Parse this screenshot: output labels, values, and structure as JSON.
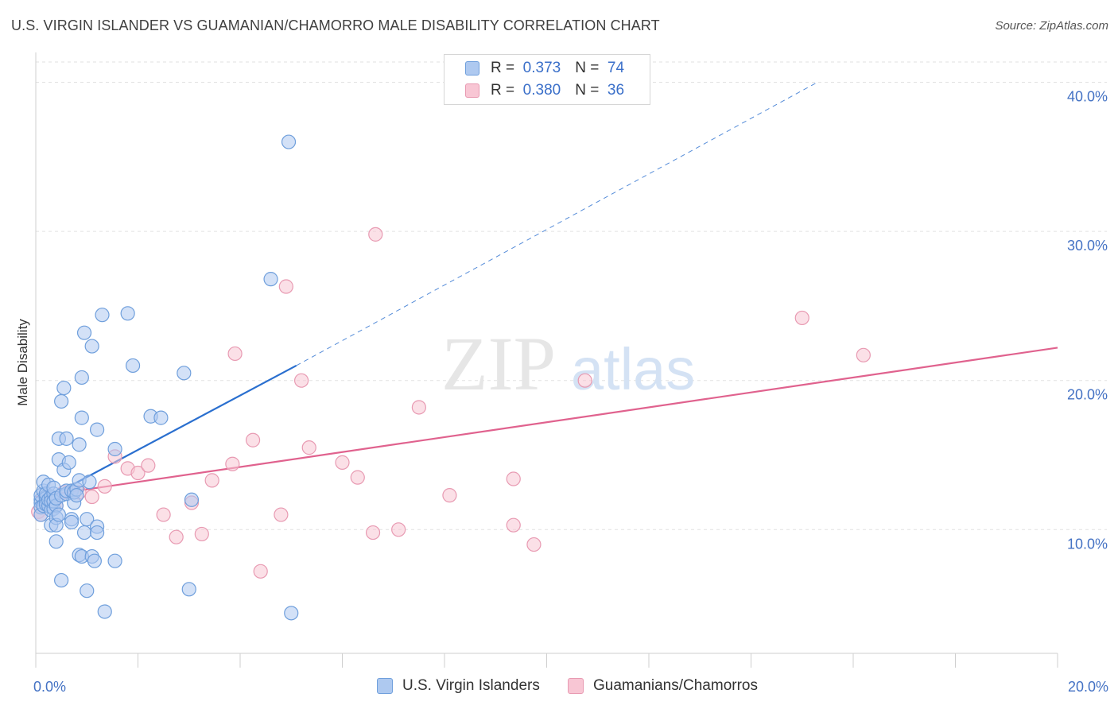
{
  "title": "U.S. VIRGIN ISLANDER VS GUAMANIAN/CHAMORRO MALE DISABILITY CORRELATION CHART",
  "source": "Source: ZipAtlas.com",
  "watermark": {
    "zip": "ZIP",
    "atlas": "atlas"
  },
  "legend": {
    "r_label": "R =",
    "n_label": "N =",
    "series": [
      {
        "r": "0.373",
        "n": "74",
        "color": "#aec9f0",
        "border": "#6f9fdc"
      },
      {
        "r": "0.380",
        "n": "36",
        "color": "#f8c6d4",
        "border": "#e89ab2"
      }
    ]
  },
  "bottom_legend": [
    "U.S. Virgin Islanders",
    "Guamanians/Chamorros"
  ],
  "chart_data": {
    "type": "scatter",
    "xlabel": "",
    "ylabel": "Male Disability",
    "xlim": [
      0,
      20
    ],
    "ylim": [
      1.7,
      42
    ],
    "x_tick_labels": [
      {
        "value": 0,
        "label": "0.0%"
      },
      {
        "value": 20,
        "label": "20.0%"
      }
    ],
    "y_ticks": [
      {
        "value": 10,
        "label": "10.0%"
      },
      {
        "value": 20,
        "label": "20.0%"
      },
      {
        "value": 30,
        "label": "30.0%"
      },
      {
        "value": 40,
        "label": "40.0%"
      }
    ],
    "grid": true,
    "series": [
      {
        "name": "U.S. Virgin Islanders",
        "color": "#6f9fdc",
        "fill": "#aec9f0",
        "trend_color": "#2a6fcf",
        "trend": {
          "x0": 0,
          "y0": 11.7,
          "x1": 5.1,
          "y1": 21.0,
          "dash_x1": 15.3,
          "dash_y1": 40.0
        },
        "points": [
          [
            0.1,
            12.0
          ],
          [
            0.1,
            11.8
          ],
          [
            0.1,
            12.3
          ],
          [
            0.1,
            11.5
          ],
          [
            0.1,
            11.0
          ],
          [
            0.15,
            12.6
          ],
          [
            0.15,
            13.2
          ],
          [
            0.15,
            11.6
          ],
          [
            0.2,
            12.2
          ],
          [
            0.2,
            11.9
          ],
          [
            0.2,
            12.1
          ],
          [
            0.2,
            11.7
          ],
          [
            0.2,
            12.4
          ],
          [
            0.25,
            11.6
          ],
          [
            0.25,
            12.0
          ],
          [
            0.25,
            13.0
          ],
          [
            0.3,
            11.3
          ],
          [
            0.3,
            12.2
          ],
          [
            0.3,
            11.9
          ],
          [
            0.3,
            10.3
          ],
          [
            0.35,
            12.4
          ],
          [
            0.35,
            11.4
          ],
          [
            0.35,
            12.8
          ],
          [
            0.35,
            11.9
          ],
          [
            0.4,
            11.6
          ],
          [
            0.4,
            12.1
          ],
          [
            0.4,
            10.8
          ],
          [
            0.4,
            10.3
          ],
          [
            0.4,
            9.2
          ],
          [
            0.45,
            14.7
          ],
          [
            0.45,
            16.1
          ],
          [
            0.45,
            11.0
          ],
          [
            0.5,
            18.6
          ],
          [
            0.5,
            12.3
          ],
          [
            0.5,
            6.6
          ],
          [
            0.55,
            19.5
          ],
          [
            0.55,
            14.0
          ],
          [
            0.6,
            12.4
          ],
          [
            0.6,
            12.6
          ],
          [
            0.6,
            16.1
          ],
          [
            0.65,
            14.5
          ],
          [
            0.7,
            12.6
          ],
          [
            0.7,
            10.7
          ],
          [
            0.7,
            10.5
          ],
          [
            0.75,
            11.8
          ],
          [
            0.75,
            12.5
          ],
          [
            0.8,
            12.7
          ],
          [
            0.8,
            12.3
          ],
          [
            0.85,
            15.7
          ],
          [
            0.85,
            13.3
          ],
          [
            0.85,
            8.3
          ],
          [
            0.9,
            8.2
          ],
          [
            0.9,
            17.5
          ],
          [
            0.9,
            20.2
          ],
          [
            0.95,
            23.2
          ],
          [
            0.95,
            9.8
          ],
          [
            1.0,
            5.9
          ],
          [
            1.0,
            10.7
          ],
          [
            1.05,
            13.2
          ],
          [
            1.1,
            22.3
          ],
          [
            1.1,
            8.2
          ],
          [
            1.15,
            7.9
          ],
          [
            1.2,
            16.7
          ],
          [
            1.2,
            10.2
          ],
          [
            1.2,
            9.8
          ],
          [
            1.3,
            24.4
          ],
          [
            1.35,
            4.5
          ],
          [
            1.55,
            15.4
          ],
          [
            1.55,
            7.9
          ],
          [
            1.8,
            24.5
          ],
          [
            1.9,
            21.0
          ],
          [
            2.25,
            17.6
          ],
          [
            2.45,
            17.5
          ],
          [
            2.9,
            20.5
          ],
          [
            3.0,
            6.0
          ],
          [
            3.05,
            12.0
          ],
          [
            4.6,
            26.8
          ],
          [
            4.95,
            36.0
          ],
          [
            5.0,
            4.4
          ]
        ]
      },
      {
        "name": "Guamanians/Chamorros",
        "color": "#e89ab2",
        "fill": "#f8c6d4",
        "trend_color": "#e0628e",
        "trend": {
          "x0": 0,
          "y0": 12.2,
          "x1": 20,
          "y1": 22.2
        },
        "points": [
          [
            0.05,
            11.2
          ],
          [
            0.1,
            11.0
          ],
          [
            0.2,
            12.0
          ],
          [
            0.4,
            11.6
          ],
          [
            0.55,
            12.5
          ],
          [
            0.85,
            12.5
          ],
          [
            1.1,
            12.2
          ],
          [
            1.35,
            12.9
          ],
          [
            1.55,
            14.9
          ],
          [
            1.8,
            14.1
          ],
          [
            2.0,
            13.8
          ],
          [
            2.2,
            14.3
          ],
          [
            2.5,
            11.0
          ],
          [
            2.75,
            9.5
          ],
          [
            3.05,
            11.8
          ],
          [
            3.25,
            9.7
          ],
          [
            3.45,
            13.3
          ],
          [
            3.85,
            14.4
          ],
          [
            3.9,
            21.8
          ],
          [
            4.25,
            16.0
          ],
          [
            4.4,
            7.2
          ],
          [
            4.8,
            11.0
          ],
          [
            4.9,
            26.3
          ],
          [
            5.2,
            20.0
          ],
          [
            5.35,
            15.5
          ],
          [
            6.0,
            14.5
          ],
          [
            6.3,
            13.5
          ],
          [
            6.65,
            29.8
          ],
          [
            6.6,
            9.8
          ],
          [
            7.1,
            10.0
          ],
          [
            7.5,
            18.2
          ],
          [
            8.1,
            12.3
          ],
          [
            9.35,
            10.3
          ],
          [
            9.35,
            13.4
          ],
          [
            9.75,
            9.0
          ],
          [
            10.75,
            20.0
          ],
          [
            15.0,
            24.2
          ],
          [
            16.2,
            21.7
          ]
        ]
      }
    ]
  }
}
